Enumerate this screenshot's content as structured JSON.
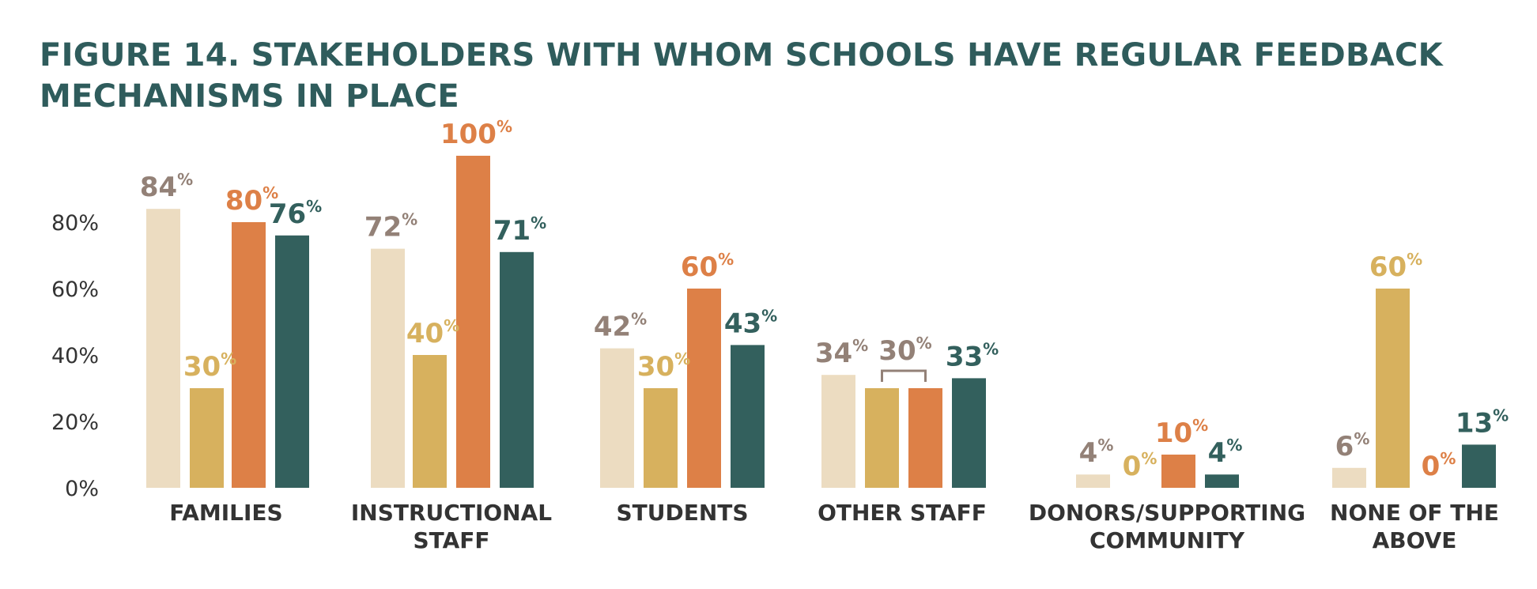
{
  "title_lines": [
    "FIGURE 14. STAKEHOLDERS WITH WHOM SCHOOLS HAVE REGULAR FEEDBACK",
    "MECHANISMS IN PLACE"
  ],
  "colors": {
    "title": "#2f5c5c",
    "series": [
      "#ecdcc1",
      "#d7b15e",
      "#dd8047",
      "#33605d"
    ],
    "label": [
      "#938177",
      "#d7b15e",
      "#dd8047",
      "#33605d"
    ],
    "tick_text": "#333333"
  },
  "chart_data": {
    "type": "bar",
    "title": "FIGURE 14. STAKEHOLDERS WITH WHOM SCHOOLS HAVE REGULAR FEEDBACK MECHANISMS IN PLACE",
    "categories": [
      [
        "FAMILIES"
      ],
      [
        "INSTRUCTIONAL",
        "STAFF"
      ],
      [
        "STUDENTS"
      ],
      [
        "OTHER STAFF"
      ],
      [
        "DONORS/SUPPORTING",
        "COMMUNITY"
      ],
      [
        "NONE OF THE",
        "ABOVE"
      ]
    ],
    "series": [
      {
        "values": [
          84,
          72,
          42,
          34,
          4,
          6
        ]
      },
      {
        "values": [
          30,
          40,
          30,
          30,
          0,
          60
        ]
      },
      {
        "values": [
          80,
          100,
          60,
          30,
          10,
          0
        ]
      },
      {
        "values": [
          76,
          71,
          43,
          33,
          4,
          13
        ]
      }
    ],
    "value_suffix": "%",
    "ylim": [
      0,
      100
    ],
    "yticks": [
      "0%",
      "20%",
      "40%",
      "60%",
      "80%"
    ],
    "legend": "none",
    "grid": false,
    "annotations": [
      {
        "category": "OTHER STAFF",
        "series": [
          1,
          2
        ],
        "label": "30%",
        "note": "bracket joining two equal bars"
      }
    ]
  }
}
